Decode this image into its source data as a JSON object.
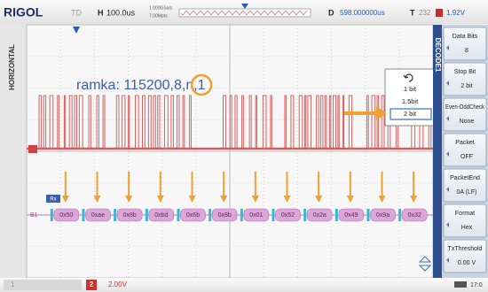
{
  "top_bar": {
    "brand": "RIGOL",
    "mode": "TD",
    "timebase_label": "H",
    "timebase": "100.0us",
    "sample_rate": "1.000GSa/s",
    "memory_depth": "7.00Mpts",
    "delay_label": "D",
    "delay": "598.000000us",
    "trigger_label": "T",
    "trigger_source": "232",
    "trigger_level": "1.92V"
  },
  "side_label": "HORIZONTAL",
  "annotation": "ramka: 115200,8,n,1",
  "bus": {
    "label": "Rx",
    "marker": "B1",
    "bytes": [
      "0x50",
      "0xae",
      "0x8b",
      "0xbd",
      "0x6b",
      "0x8b",
      "0x01",
      "0x52",
      "0x2a",
      "0x49",
      "0x9a",
      "0x32"
    ]
  },
  "popup": {
    "options": [
      "1 bit",
      "1.5bit",
      "2 bit"
    ],
    "selected": 2
  },
  "menu": {
    "title": "DECODE1",
    "items": [
      {
        "label": "Data Bits",
        "value": "8"
      },
      {
        "label": "Stop Bit",
        "value": "2 bit"
      },
      {
        "label": "Even-OddCheck",
        "value": "None"
      },
      {
        "label": "Packet",
        "value": "OFF"
      },
      {
        "label": "PacketEnd",
        "value": "0A (LF)"
      },
      {
        "label": "Format",
        "value": "Hex"
      },
      {
        "label": "TxThreshold",
        "value": "0.00 V"
      }
    ]
  },
  "bottom_bar": {
    "channel_1": "1",
    "channel_2": "2",
    "ch2_scale": "2.00V",
    "time": "17:0"
  }
}
